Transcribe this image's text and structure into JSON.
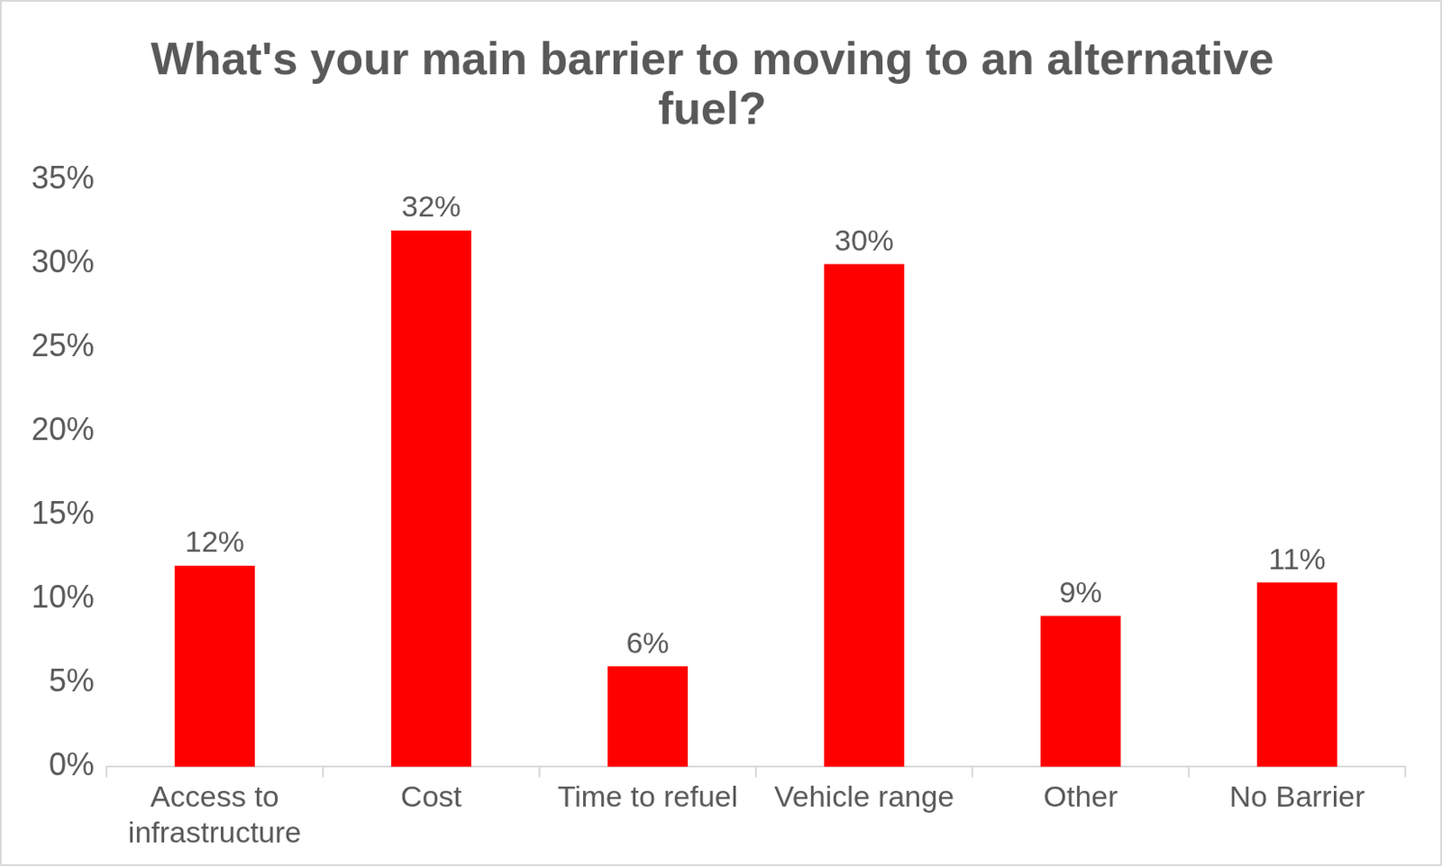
{
  "chart_data": {
    "type": "bar",
    "title": "What's your main barrier to moving to an alternative fuel?",
    "categories": [
      "Access to infrastructure",
      "Cost",
      "Time to refuel",
      "Vehicle range",
      "Other",
      "No Barrier"
    ],
    "values": [
      12,
      32,
      6,
      30,
      9,
      11
    ],
    "value_labels": [
      "12%",
      "32%",
      "6%",
      "30%",
      "9%",
      "11%"
    ],
    "data_labels": true,
    "color": "#ff0000",
    "ylim": [
      0,
      35
    ],
    "yticks": [
      {
        "value": 0,
        "label": "0%"
      },
      {
        "value": 5,
        "label": "5%"
      },
      {
        "value": 10,
        "label": "10%"
      },
      {
        "value": 15,
        "label": "15%"
      },
      {
        "value": 20,
        "label": "20%"
      },
      {
        "value": 25,
        "label": "25%"
      },
      {
        "value": 30,
        "label": "30%"
      },
      {
        "value": 35,
        "label": "35%"
      }
    ],
    "grid": false
  }
}
